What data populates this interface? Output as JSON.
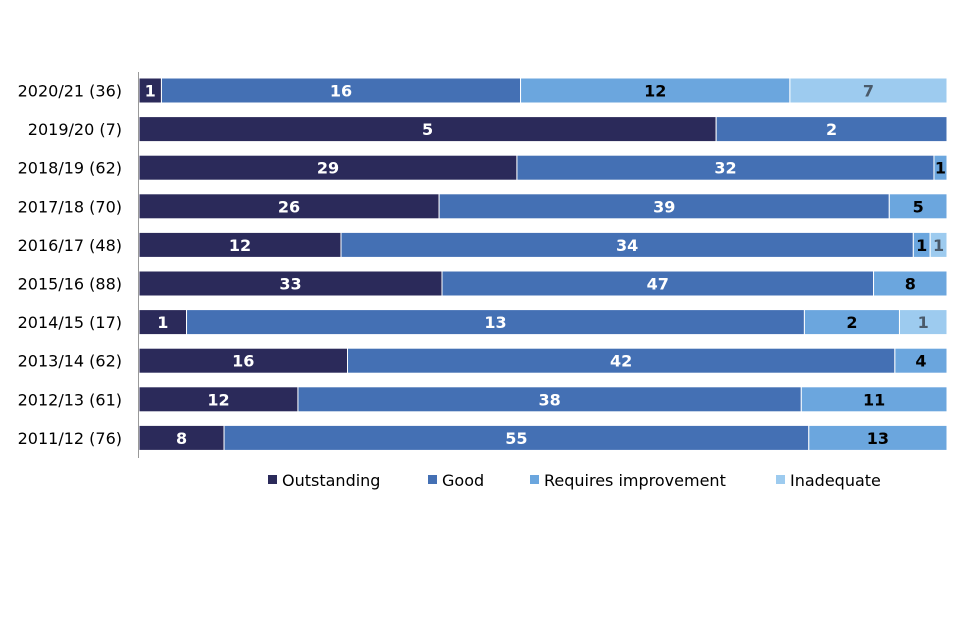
{
  "chart_data": {
    "type": "bar",
    "orientation": "horizontal",
    "stacked": true,
    "normalized": true,
    "title": "",
    "xlabel": "",
    "ylabel": "",
    "grid": false,
    "legend_position": "bottom",
    "categories": [
      "2020/21 (36)",
      "2019/20 (7)",
      "2018/19 (62)",
      "2017/18 (70)",
      "2016/17 (48)",
      "2015/16 (88)",
      "2014/15 (17)",
      "2013/14 (62)",
      "2012/13 (61)",
      "2011/12 (76)"
    ],
    "series": [
      {
        "name": "Outstanding",
        "color": "#2b2a5a",
        "label_color": "#ffffff",
        "values": [
          1,
          5,
          29,
          26,
          12,
          33,
          1,
          16,
          12,
          8
        ]
      },
      {
        "name": "Good",
        "color": "#4470b4",
        "label_color": "#ffffff",
        "values": [
          16,
          2,
          32,
          39,
          34,
          47,
          13,
          42,
          38,
          55
        ]
      },
      {
        "name": "Requires improvement",
        "color": "#6ba6de",
        "label_color": "#000000",
        "values": [
          12,
          0,
          1,
          5,
          1,
          8,
          2,
          4,
          11,
          13
        ]
      },
      {
        "name": "Inadequate",
        "color": "#9dcbef",
        "label_color": "#4a5a6a",
        "values": [
          7,
          0,
          0,
          0,
          1,
          0,
          1,
          0,
          0,
          0
        ]
      }
    ]
  }
}
